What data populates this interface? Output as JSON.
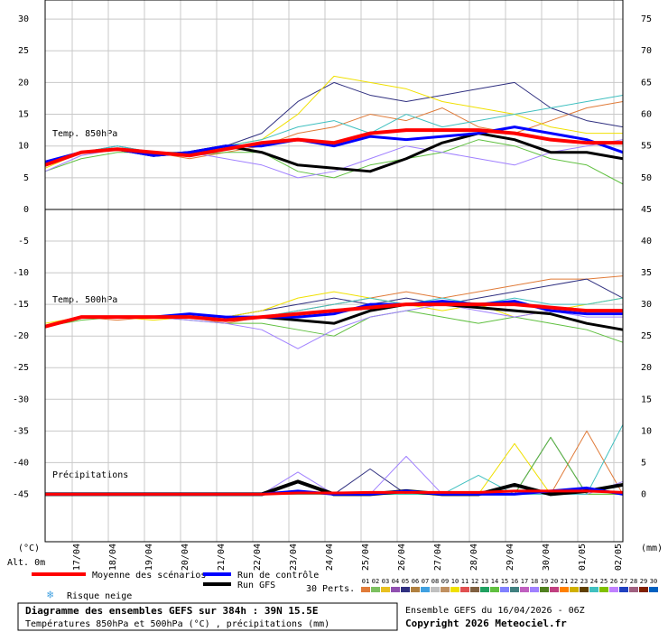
{
  "chart_data": [
    {
      "type": "line",
      "label": "Temp. 850hPa",
      "x": [
        0,
        24,
        48,
        72,
        96,
        120,
        144,
        168,
        192,
        216,
        240,
        264,
        288,
        312,
        336,
        360,
        384
      ],
      "xlim": [
        0,
        384
      ],
      "xticks": [
        {
          "value": 18,
          "label": "17/04"
        },
        {
          "value": 42,
          "label": "18/04"
        },
        {
          "value": 66,
          "label": "19/04"
        },
        {
          "value": 90,
          "label": "20/04"
        },
        {
          "value": 114,
          "label": "21/04"
        },
        {
          "value": 138,
          "label": "22/04"
        },
        {
          "value": 162,
          "label": "23/04"
        },
        {
          "value": 186,
          "label": "24/04"
        },
        {
          "value": 210,
          "label": "25/04"
        },
        {
          "value": 234,
          "label": "26/04"
        },
        {
          "value": 258,
          "label": "27/04"
        },
        {
          "value": 282,
          "label": "28/04"
        },
        {
          "value": 306,
          "label": "29/04"
        },
        {
          "value": 330,
          "label": "30/04"
        },
        {
          "value": 354,
          "label": "01/05"
        },
        {
          "value": 378,
          "label": "02/05"
        }
      ],
      "ylim": [
        0,
        33
      ],
      "yticks": [
        0,
        5,
        10,
        15,
        20,
        25,
        30
      ],
      "y2lim": [
        45,
        78
      ],
      "y2ticks": [
        45,
        50,
        55,
        60,
        65,
        70,
        75
      ],
      "grid": true,
      "series": [
        {
          "name": "Moyenne des scénarios",
          "color": "#ff0000",
          "values": [
            7,
            9,
            9.5,
            9,
            8.5,
            9.5,
            10.5,
            11,
            10.5,
            12,
            12.5,
            12.5,
            12.5,
            12,
            11,
            10.5,
            10.5
          ]
        },
        {
          "name": "Run de contrôle",
          "color": "#0000ff",
          "values": [
            7.5,
            9,
            9.5,
            8.5,
            9,
            10,
            10,
            11,
            10,
            11.5,
            11,
            11.5,
            12,
            13,
            12,
            11,
            9
          ]
        },
        {
          "name": "Run GFS",
          "color": "#000000",
          "values": [
            7,
            9,
            9.5,
            8.5,
            9,
            10,
            9,
            7,
            6.5,
            6,
            8,
            10.5,
            12,
            11,
            9,
            9,
            8
          ]
        },
        {
          "name": "01",
          "color": "#e07b39",
          "values": [
            7,
            9,
            9.5,
            9,
            8,
            9,
            10,
            12,
            13,
            15,
            14,
            16,
            13,
            12,
            14,
            16,
            17
          ]
        },
        {
          "name": "05",
          "color": "#303080",
          "values": [
            7.5,
            9,
            10,
            9,
            8.5,
            10,
            12,
            17,
            20,
            18,
            17,
            18,
            19,
            20,
            16,
            14,
            13
          ]
        },
        {
          "name": "10",
          "color": "#f0e000",
          "values": [
            6.5,
            9,
            9.5,
            9,
            9,
            10,
            11,
            15,
            21,
            20,
            19,
            17,
            16,
            15,
            13,
            12,
            12
          ]
        },
        {
          "name": "14",
          "color": "#60c040",
          "values": [
            6,
            8,
            9,
            9,
            8.5,
            9,
            9,
            6,
            5,
            7,
            8,
            9,
            11,
            10,
            8,
            7,
            4
          ]
        },
        {
          "name": "18",
          "color": "#a080ff",
          "values": [
            6,
            8.5,
            9.5,
            9,
            9,
            8,
            7,
            5,
            6,
            8,
            10,
            9,
            8,
            7,
            9,
            10,
            11
          ]
        },
        {
          "name": "24",
          "color": "#40c0c0",
          "values": [
            7,
            9,
            10,
            9,
            9,
            10,
            11,
            13,
            14,
            12,
            15,
            13,
            14,
            15,
            16,
            17,
            18
          ]
        }
      ]
    },
    {
      "type": "line",
      "label": "Temp. 500hPa",
      "precip_label": "Précipitations",
      "x": [
        0,
        24,
        48,
        72,
        96,
        120,
        144,
        168,
        192,
        216,
        240,
        264,
        288,
        312,
        336,
        360,
        384
      ],
      "xlim": [
        0,
        384
      ],
      "ylim": [
        -52.5,
        0
      ],
      "yticks": [
        -5,
        -10,
        -15,
        -20,
        -25,
        -30,
        -35,
        -40,
        -45
      ],
      "y2lim": [
        -7.5,
        45
      ],
      "y2ticks": [
        0,
        5,
        10,
        15,
        20,
        25,
        30,
        35,
        40
      ],
      "grid": true,
      "series": [
        {
          "name": "Moyenne des scénarios",
          "color": "#ff0000",
          "values": [
            -18.5,
            -17,
            -17,
            -17,
            -17,
            -17.5,
            -17,
            -16.5,
            -16,
            -15.5,
            -15,
            -15,
            -15,
            -15,
            -15.5,
            -16,
            -16
          ]
        },
        {
          "name": "Run de contrôle",
          "color": "#0000ff",
          "values": [
            -18.5,
            -17,
            -17,
            -17,
            -16.5,
            -17,
            -17,
            -17,
            -16.5,
            -15,
            -15,
            -14.5,
            -15,
            -14.5,
            -16,
            -16.5,
            -16.5
          ]
        },
        {
          "name": "Run GFS",
          "color": "#000000",
          "values": [
            -18.5,
            -17,
            -17,
            -17,
            -17,
            -17.5,
            -17,
            -17.5,
            -18,
            -16,
            -15,
            -15,
            -15.5,
            -16,
            -16.5,
            -18,
            -19
          ]
        },
        {
          "name": "01",
          "color": "#e07b39",
          "values": [
            -18.5,
            -17,
            -17.5,
            -17,
            -17,
            -18,
            -17,
            -16,
            -15,
            -14,
            -13,
            -14,
            -13,
            -12,
            -11,
            -11,
            -10.5
          ]
        },
        {
          "name": "05",
          "color": "#303080",
          "values": [
            -18.5,
            -17,
            -17,
            -17,
            -17,
            -17,
            -16,
            -15,
            -14,
            -15,
            -14,
            -15,
            -14,
            -13,
            -12,
            -11,
            -14
          ]
        },
        {
          "name": "10",
          "color": "#f0e000",
          "values": [
            -18,
            -17,
            -17,
            -17.5,
            -17,
            -17,
            -16,
            -14,
            -13,
            -14,
            -15,
            -16,
            -15,
            -17,
            -16,
            -15,
            -14
          ]
        },
        {
          "name": "14",
          "color": "#60c040",
          "values": [
            -18.5,
            -17.5,
            -17,
            -17,
            -17.5,
            -18,
            -18,
            -19,
            -20,
            -17,
            -16,
            -17,
            -18,
            -17,
            -18,
            -19,
            -21
          ]
        },
        {
          "name": "18",
          "color": "#a080ff",
          "values": [
            -18.5,
            -17,
            -17,
            -17,
            -17.5,
            -18,
            -19,
            -22,
            -19,
            -17,
            -16,
            -15,
            -16,
            -17,
            -16,
            -17,
            -17
          ]
        },
        {
          "name": "24",
          "color": "#40c0c0",
          "values": [
            -18.5,
            -17,
            -17,
            -17,
            -17,
            -17,
            -17,
            -16,
            -15,
            -14,
            -15,
            -14,
            -15,
            -14,
            -15,
            -15,
            -14
          ]
        },
        {
          "name": "01",
          "axis": "y2",
          "color": "#e07b39",
          "values": [
            0,
            0,
            0,
            0,
            0,
            0,
            0,
            0,
            0,
            0,
            0,
            0,
            0,
            0,
            0,
            10,
            0
          ]
        },
        {
          "name": "05",
          "axis": "y2",
          "color": "#303080",
          "values": [
            0,
            0,
            0,
            0,
            0,
            0,
            0,
            0,
            0,
            4,
            0,
            0,
            0,
            0,
            9,
            0,
            0
          ]
        },
        {
          "name": "10",
          "axis": "y2",
          "color": "#f0e000",
          "values": [
            0,
            0,
            0,
            0,
            0,
            0,
            0,
            0,
            0,
            0,
            0,
            0,
            0,
            8,
            0,
            0,
            0
          ]
        },
        {
          "name": "14",
          "axis": "y2",
          "color": "#60c040",
          "values": [
            0,
            0,
            0,
            0,
            0,
            0,
            0,
            0,
            0,
            0,
            0,
            0,
            0,
            0,
            9,
            0,
            0
          ]
        },
        {
          "name": "18",
          "axis": "y2",
          "color": "#a080ff",
          "values": [
            0,
            0,
            0,
            0,
            0,
            0,
            0,
            3.5,
            0,
            0,
            6,
            0,
            0,
            0,
            0,
            0,
            2
          ]
        },
        {
          "name": "24",
          "axis": "y2",
          "color": "#40c0c0",
          "values": [
            0,
            0,
            0,
            0,
            0,
            0,
            0,
            0,
            0,
            0,
            0,
            0,
            3,
            0,
            0,
            0,
            11
          ]
        },
        {
          "name": "Run GFS",
          "axis": "y2",
          "color": "#000000",
          "values": [
            0,
            0,
            0,
            0,
            0,
            0,
            0,
            2,
            0,
            0,
            0.5,
            0,
            0,
            1.5,
            0,
            0.5,
            1.5
          ]
        },
        {
          "name": "Run de contrôle",
          "axis": "y2",
          "color": "#0000ff",
          "values": [
            0,
            0,
            0,
            0,
            0,
            0,
            0,
            0.5,
            0,
            0,
            0.5,
            0,
            0,
            0,
            0.5,
            1,
            0
          ]
        },
        {
          "name": "Moyenne des scénarios",
          "axis": "y2",
          "color": "#ff0000",
          "values": [
            0,
            0,
            0,
            0,
            0,
            0,
            0,
            0.2,
            0.2,
            0.3,
            0.3,
            0.3,
            0.3,
            0.5,
            0.5,
            0.5,
            0.3
          ]
        }
      ]
    }
  ],
  "axes": {
    "left_unit": "(°C)",
    "right_unit": "(mm)",
    "altitude": "Alt. 0m"
  },
  "legend": {
    "snow": "Risque neige",
    "perts_label": "30 Perts.",
    "perturbations": [
      {
        "name": "01",
        "color": "#e07b39"
      },
      {
        "name": "02",
        "color": "#7cc060"
      },
      {
        "name": "03",
        "color": "#e8c020"
      },
      {
        "name": "04",
        "color": "#9050b0"
      },
      {
        "name": "05",
        "color": "#303080"
      },
      {
        "name": "06",
        "color": "#b08040"
      },
      {
        "name": "07",
        "color": "#40a0e0"
      },
      {
        "name": "08",
        "color": "#c0c0c0"
      },
      {
        "name": "09",
        "color": "#c09060"
      },
      {
        "name": "10",
        "color": "#f0e000"
      },
      {
        "name": "11",
        "color": "#e05050"
      },
      {
        "name": "12",
        "color": "#806040"
      },
      {
        "name": "13",
        "color": "#20a060"
      },
      {
        "name": "14",
        "color": "#60c040"
      },
      {
        "name": "15",
        "color": "#8080ff"
      },
      {
        "name": "16",
        "color": "#408080"
      },
      {
        "name": "17",
        "color": "#c060c0"
      },
      {
        "name": "18",
        "color": "#a080ff"
      },
      {
        "name": "19",
        "color": "#508020"
      },
      {
        "name": "20",
        "color": "#c04080"
      },
      {
        "name": "21",
        "color": "#ff8000"
      },
      {
        "name": "22",
        "color": "#d0b000"
      },
      {
        "name": "23",
        "color": "#604000"
      },
      {
        "name": "24",
        "color": "#40c0c0"
      },
      {
        "name": "25",
        "color": "#80c000"
      },
      {
        "name": "26",
        "color": "#c080ff"
      },
      {
        "name": "27",
        "color": "#2040c0"
      },
      {
        "name": "28",
        "color": "#a06080"
      },
      {
        "name": "29",
        "color": "#802000"
      },
      {
        "name": "30",
        "color": "#0060c0"
      }
    ]
  },
  "footer": {
    "title": "Diagramme des ensembles GEFS sur 384h : 39N 15.5E",
    "subtitle": "Températures 850hPa et 500hPa (°C) , précipitations (mm)",
    "run": "Ensemble GEFS du 16/04/2026 - 06Z",
    "copyright": "Copyright 2026 Meteociel.fr"
  }
}
